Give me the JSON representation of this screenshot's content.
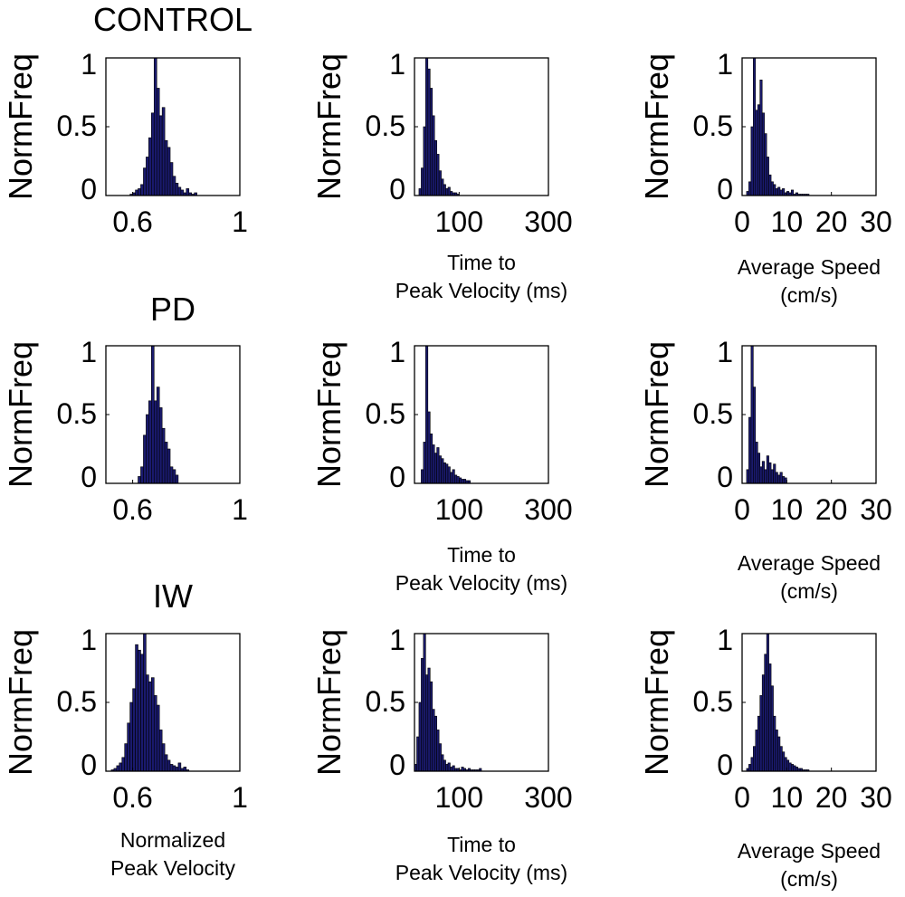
{
  "figure": {
    "ylabel": "NormFreq"
  },
  "rows": [
    {
      "title": "CONTROL",
      "xlabels": [
        "",
        [
          "Time to",
          "Peak Velocity (ms)"
        ],
        [
          "Average Speed",
          "(cm/s)"
        ]
      ]
    },
    {
      "title": "PD",
      "xlabels": [
        "",
        [
          "Time to",
          "Peak Velocity (ms)"
        ],
        [
          "Average Speed",
          "(cm/s)"
        ]
      ]
    },
    {
      "title": "IW",
      "xlabels": [
        [
          "Normalized",
          "Peak Velocity"
        ],
        [
          "Time to",
          "Peak Velocity (ms)"
        ],
        [
          "Average Speed",
          "(cm/s)"
        ]
      ]
    }
  ],
  "colors": {
    "bar_fill": "#1a1a6e",
    "bar_edge": "#000000",
    "axis": "#000000"
  },
  "chart_data": [
    {
      "id": "control-npv",
      "type": "bar",
      "title": "CONTROL",
      "xlabel": "",
      "ylabel": "NormFreq",
      "xlim": [
        0.5,
        1.0
      ],
      "ylim": [
        0,
        1
      ],
      "xticks": [
        0.6,
        1
      ],
      "xtick_labels": [
        "0.6",
        "1"
      ],
      "yticks": [
        0,
        0.5,
        1
      ],
      "ytick_labels": [
        "0",
        "0.5",
        "1"
      ],
      "bin_start": 0.59,
      "bin_width": 0.01,
      "values": [
        0.01,
        0.02,
        0.04,
        0.05,
        0.08,
        0.2,
        0.28,
        0.42,
        0.6,
        1.0,
        0.78,
        0.58,
        0.64,
        0.4,
        0.35,
        0.24,
        0.14,
        0.09,
        0.06,
        0.04,
        0.02,
        0.05,
        0.02,
        0.01,
        0.02
      ]
    },
    {
      "id": "control-ttpv",
      "type": "bar",
      "title": "",
      "xlabel": "Time to Peak Velocity (ms)",
      "ylabel": "NormFreq",
      "xlim": [
        0,
        300
      ],
      "ylim": [
        0,
        1
      ],
      "xticks": [
        100,
        300
      ],
      "xtick_labels": [
        "100",
        "300"
      ],
      "yticks": [
        0,
        0.5,
        1
      ],
      "ytick_labels": [
        "0",
        "0.5",
        "1"
      ],
      "bin_start": 10,
      "bin_width": 5,
      "values": [
        0.05,
        0.2,
        0.5,
        1.0,
        0.92,
        0.78,
        0.58,
        0.4,
        0.3,
        0.18,
        0.12,
        0.08,
        0.05,
        0.06,
        0.03,
        0.02,
        0.02,
        0.01
      ]
    },
    {
      "id": "control-speed",
      "type": "bar",
      "title": "",
      "xlabel": "Average Speed (cm/s)",
      "ylabel": "NormFreq",
      "xlim": [
        0,
        30
      ],
      "ylim": [
        0,
        1
      ],
      "xticks": [
        0,
        10,
        20,
        30
      ],
      "xtick_labels": [
        "0",
        "10",
        "20",
        "30"
      ],
      "yticks": [
        0,
        0.5,
        1
      ],
      "ytick_labels": [
        "0",
        "0.5",
        "1"
      ],
      "bin_start": 1,
      "bin_width": 0.5,
      "values": [
        0.03,
        0.1,
        0.5,
        1.0,
        0.62,
        0.66,
        0.84,
        0.6,
        0.45,
        0.28,
        0.15,
        0.1,
        0.08,
        0.05,
        0.06,
        0.04,
        0.05,
        0.02,
        0.03,
        0.02,
        0.04,
        0.01,
        0.02,
        0.01,
        0.01,
        0.01,
        0.01,
        0.01
      ]
    },
    {
      "id": "pd-npv",
      "type": "bar",
      "title": "PD",
      "xlabel": "",
      "ylabel": "NormFreq",
      "xlim": [
        0.5,
        1.0
      ],
      "ylim": [
        0,
        1
      ],
      "xticks": [
        0.6,
        1
      ],
      "xtick_labels": [
        "0.6",
        "1"
      ],
      "yticks": [
        0,
        0.5,
        1
      ],
      "ytick_labels": [
        "0",
        "0.5",
        "1"
      ],
      "bin_start": 0.62,
      "bin_width": 0.01,
      "values": [
        0.05,
        0.12,
        0.35,
        0.5,
        0.6,
        1.0,
        0.6,
        0.7,
        0.55,
        0.4,
        0.3,
        0.25,
        0.12,
        0.1,
        0.06
      ]
    },
    {
      "id": "pd-ttpv",
      "type": "bar",
      "title": "",
      "xlabel": "Time to Peak Velocity (ms)",
      "ylabel": "NormFreq",
      "xlim": [
        0,
        300
      ],
      "ylim": [
        0,
        1
      ],
      "xticks": [
        100,
        300
      ],
      "xtick_labels": [
        "100",
        "300"
      ],
      "yticks": [
        0,
        0.5,
        1
      ],
      "ytick_labels": [
        "0",
        "0.5",
        "1"
      ],
      "bin_start": 15,
      "bin_width": 5,
      "values": [
        0.1,
        0.3,
        1.0,
        0.52,
        0.36,
        0.28,
        0.22,
        0.26,
        0.2,
        0.18,
        0.15,
        0.14,
        0.12,
        0.08,
        0.1,
        0.06,
        0.05,
        0.04,
        0.03,
        0.03,
        0.02,
        0.02
      ]
    },
    {
      "id": "pd-speed",
      "type": "bar",
      "title": "",
      "xlabel": "Average Speed (cm/s)",
      "ylabel": "NormFreq",
      "xlim": [
        0,
        30
      ],
      "ylim": [
        0,
        1
      ],
      "xticks": [
        0,
        10,
        20,
        30
      ],
      "xtick_labels": [
        "0",
        "10",
        "20",
        "30"
      ],
      "yticks": [
        0,
        0.5,
        1
      ],
      "ytick_labels": [
        "0",
        "0.5",
        "1"
      ],
      "bin_start": 1,
      "bin_width": 0.5,
      "values": [
        0.1,
        0.48,
        1.0,
        0.7,
        0.3,
        0.22,
        0.12,
        0.16,
        0.1,
        0.2,
        0.15,
        0.1,
        0.14,
        0.08,
        0.06,
        0.08,
        0.05,
        0.04
      ]
    },
    {
      "id": "iw-npv",
      "type": "bar",
      "title": "IW",
      "xlabel": "Normalized Peak Velocity",
      "ylabel": "NormFreq",
      "xlim": [
        0.5,
        1.0
      ],
      "ylim": [
        0,
        1
      ],
      "xticks": [
        0.6,
        1
      ],
      "xtick_labels": [
        "0.6",
        "1"
      ],
      "yticks": [
        0,
        0.5,
        1
      ],
      "ytick_labels": [
        "0",
        "0.5",
        "1"
      ],
      "bin_start": 0.52,
      "bin_width": 0.01,
      "values": [
        0.01,
        0.02,
        0.04,
        0.06,
        0.1,
        0.2,
        0.35,
        0.5,
        0.6,
        0.92,
        0.88,
        0.85,
        1.0,
        0.7,
        0.65,
        0.68,
        0.55,
        0.48,
        0.3,
        0.2,
        0.12,
        0.08,
        0.05,
        0.04,
        0.03,
        0.06,
        0.02,
        0.03,
        0.01
      ]
    },
    {
      "id": "iw-ttpv",
      "type": "bar",
      "title": "",
      "xlabel": "Time to Peak Velocity (ms)",
      "ylabel": "NormFreq",
      "xlim": [
        0,
        300
      ],
      "ylim": [
        0,
        1
      ],
      "xticks": [
        100,
        300
      ],
      "xtick_labels": [
        "100",
        "300"
      ],
      "yticks": [
        0,
        0.5,
        1
      ],
      "ytick_labels": [
        "0",
        "0.5",
        "1"
      ],
      "bin_start": 0,
      "bin_width": 5,
      "values": [
        0.05,
        0.25,
        0.5,
        0.82,
        1.0,
        0.7,
        0.75,
        0.65,
        0.45,
        0.4,
        0.3,
        0.2,
        0.12,
        0.08,
        0.05,
        0.06,
        0.03,
        0.04,
        0.02,
        0.02,
        0.01,
        0.03,
        0.02,
        0.01,
        0.02,
        0.01,
        0.01,
        0.01,
        0.01,
        0.02
      ]
    },
    {
      "id": "iw-speed",
      "type": "bar",
      "title": "",
      "xlabel": "Average Speed (cm/s)",
      "ylabel": "NormFreq",
      "xlim": [
        0,
        30
      ],
      "ylim": [
        0,
        1
      ],
      "xticks": [
        0,
        10,
        20,
        30
      ],
      "xtick_labels": [
        "0",
        "10",
        "20",
        "30"
      ],
      "yticks": [
        0,
        0.5,
        1
      ],
      "ytick_labels": [
        "0",
        "0.5",
        "1"
      ],
      "bin_start": 1,
      "bin_width": 0.5,
      "values": [
        0.02,
        0.05,
        0.1,
        0.18,
        0.3,
        0.4,
        0.55,
        0.7,
        0.85,
        1.0,
        0.78,
        0.62,
        0.4,
        0.3,
        0.25,
        0.18,
        0.14,
        0.1,
        0.08,
        0.06,
        0.05,
        0.04,
        0.03,
        0.02,
        0.02,
        0.01,
        0.01,
        0.01
      ]
    }
  ]
}
